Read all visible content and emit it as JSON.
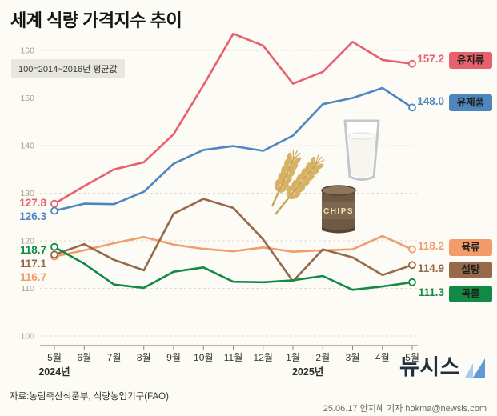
{
  "title": "세계 식량 가격지수 추이",
  "subtitle": "100=2014~2016년 평균값",
  "footer": {
    "source": "자료:농림축산식품부, 식량농업기구(FAO)",
    "credit": "25.06.17 안지혜 기자 hokma@newsis.com",
    "logo_text": "뉴시스"
  },
  "decor": {
    "chips_label": "CHIPS"
  },
  "chart_data": {
    "type": "line",
    "title": "세계 식량 가격지수 추이",
    "note": "100=2014~2016년 평균값",
    "xlabel": "",
    "ylabel": "",
    "x": [
      "5월",
      "6월",
      "7월",
      "8월",
      "9월",
      "10월",
      "11월",
      "12월",
      "1월",
      "2월",
      "3월",
      "4월",
      "5월"
    ],
    "year_markers": [
      {
        "label": "2024년",
        "index": 0
      },
      {
        "label": "2025년",
        "index": 8.5
      }
    ],
    "ylim": [
      100,
      166
    ],
    "yticks": [
      100,
      110,
      120,
      130,
      140,
      150,
      160
    ],
    "grid": "horizontal-dashed",
    "legend_position": "right",
    "series": [
      {
        "key": "oils",
        "name": "유지류",
        "color": "#e85f6e",
        "values": [
          127.8,
          131.5,
          135.0,
          136.5,
          142.4,
          152.7,
          163.5,
          161.0,
          153.0,
          155.5,
          161.8,
          158.0,
          157.2
        ],
        "start_label": "127.8",
        "end_label": "157.2"
      },
      {
        "key": "dairy",
        "name": "유제품",
        "color": "#4e86c0",
        "values": [
          126.3,
          127.8,
          127.7,
          130.3,
          136.2,
          139.1,
          139.9,
          138.9,
          142.1,
          148.7,
          150.0,
          152.1,
          148.0
        ],
        "start_label": "126.3",
        "end_label": "148.0"
      },
      {
        "key": "meat",
        "name": "육류",
        "color": "#f29c6b",
        "values": [
          116.7,
          118.0,
          119.5,
          120.8,
          119.2,
          118.3,
          117.8,
          118.6,
          117.7,
          118.0,
          118.2,
          121.0,
          118.2
        ],
        "start_label": "116.7",
        "end_label": "118.2"
      },
      {
        "key": "sugar",
        "name": "설탕",
        "color": "#97694b",
        "values": [
          117.1,
          119.3,
          116.0,
          113.8,
          125.7,
          128.8,
          126.9,
          120.3,
          111.5,
          118.2,
          116.5,
          112.8,
          114.9
        ],
        "start_label": "117.1",
        "end_label": "114.9"
      },
      {
        "key": "grains",
        "name": "곡물",
        "color": "#128a45",
        "values": [
          118.7,
          115.2,
          110.8,
          110.1,
          113.5,
          114.4,
          111.4,
          111.3,
          111.7,
          112.6,
          109.7,
          110.4,
          111.3
        ],
        "start_label": "118.7",
        "end_label": "111.3"
      }
    ]
  }
}
